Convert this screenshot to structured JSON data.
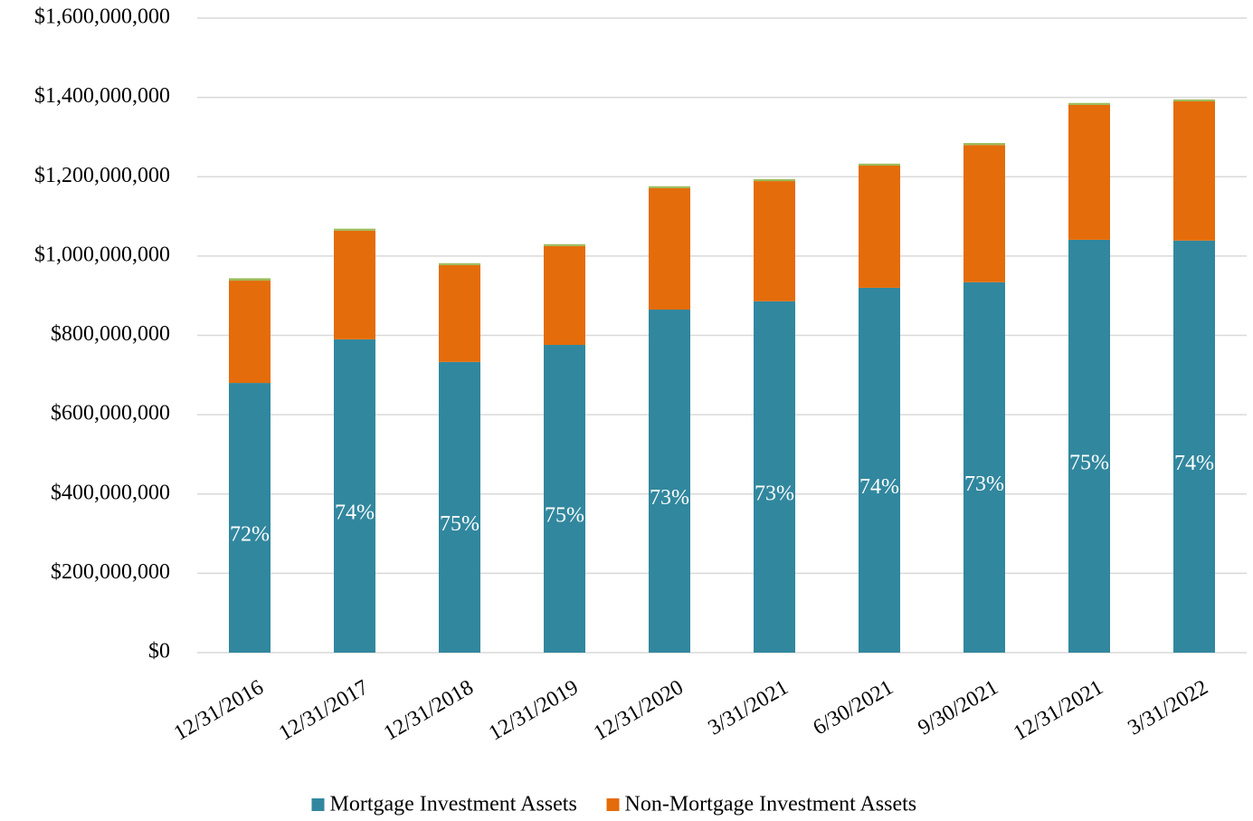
{
  "chart_data": {
    "type": "stacked_bar",
    "categories": [
      "12/31/2016",
      "12/31/2017",
      "12/31/2018",
      "12/31/2019",
      "12/31/2020",
      "3/31/2021",
      "6/30/2021",
      "9/30/2021",
      "12/31/2021",
      "3/31/2022"
    ],
    "series": [
      {
        "name": "Mortgage Investment Assets",
        "color": "#31879e",
        "values": [
          680000000,
          790000000,
          733000000,
          776000000,
          865000000,
          886000000,
          920000000,
          934000000,
          1041000000,
          1039000000
        ]
      },
      {
        "name": "Non-Mortgage Investment Assets",
        "color": "#e46c0a",
        "values": [
          258000000,
          274000000,
          244000000,
          249000000,
          306000000,
          303000000,
          308000000,
          346000000,
          340000000,
          351000000
        ]
      },
      {
        "color": "#9bbb59",
        "values": [
          6000000,
          5000000,
          5000000,
          5000000,
          5000000,
          5000000,
          5000000,
          5000000,
          5000000,
          5000000
        ]
      }
    ],
    "bar_labels": [
      "72%",
      "74%",
      "75%",
      "75%",
      "73%",
      "73%",
      "74%",
      "73%",
      "75%",
      "74%"
    ],
    "ylim": [
      0,
      1600000000
    ],
    "yticks": [
      {
        "value": 0,
        "label": "$0"
      },
      {
        "value": 200000000,
        "label": "$200,000,000"
      },
      {
        "value": 400000000,
        "label": "$400,000,000"
      },
      {
        "value": 600000000,
        "label": "$600,000,000"
      },
      {
        "value": 800000000,
        "label": "$800,000,000"
      },
      {
        "value": 1000000000,
        "label": "$1,000,000,000"
      },
      {
        "value": 1200000000,
        "label": "$1,200,000,000"
      },
      {
        "value": 1400000000,
        "label": "$1,400,000,000"
      },
      {
        "value": 1600000000,
        "label": "$1,600,000,000"
      }
    ],
    "grid": true,
    "legend": "bottom"
  }
}
